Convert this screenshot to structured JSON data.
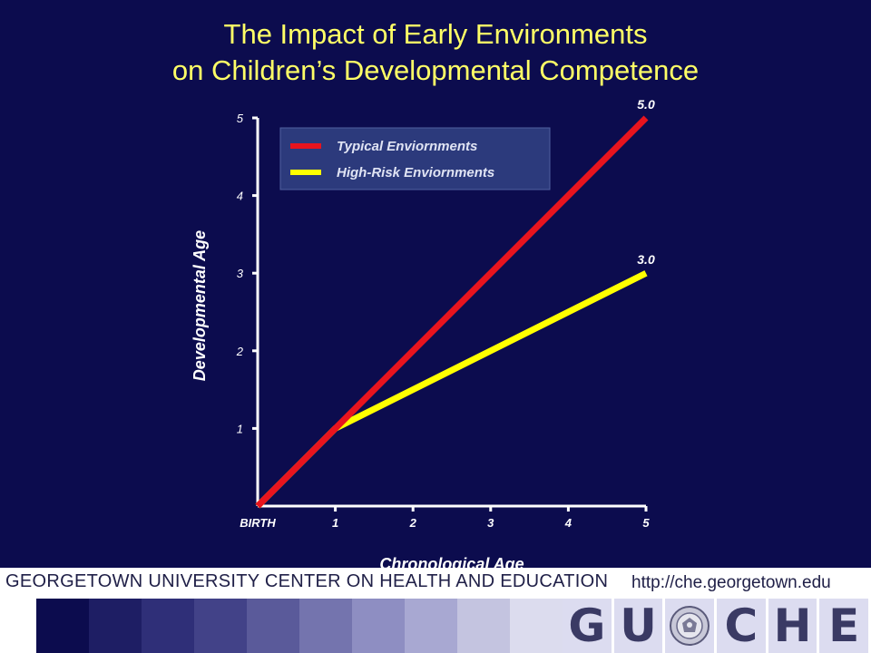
{
  "title": {
    "line1": "The Impact of Early Environments",
    "line2": "on Children’s Developmental Competence"
  },
  "chart_data": {
    "type": "line",
    "xlabel": "Chronological Age",
    "ylabel": "Developmental Age",
    "x_ticks": [
      "BIRTH",
      "1",
      "2",
      "3",
      "4",
      "5"
    ],
    "y_ticks": [
      "1",
      "2",
      "3",
      "4",
      "5"
    ],
    "xlim": [
      0,
      5
    ],
    "ylim": [
      0,
      5
    ],
    "legend_position": "top-left",
    "series": [
      {
        "name": "Typical Enviornments",
        "color": "#e8141e",
        "points": [
          [
            0,
            0
          ],
          [
            1,
            1
          ],
          [
            5,
            5
          ]
        ],
        "end_label": "5.0"
      },
      {
        "name": "High-Risk Enviornments",
        "color": "#ffff00",
        "points": [
          [
            0,
            0
          ],
          [
            1,
            1
          ],
          [
            5,
            3
          ]
        ],
        "end_label": "3.0"
      }
    ]
  },
  "footer": {
    "organization": "GEORGETOWN UNIVERSITY CENTER ON HEALTH AND EDUCATION",
    "url": "http://che.georgetown.edu",
    "logo_left": [
      "G",
      "U"
    ],
    "logo_right": [
      "C",
      "H",
      "E"
    ],
    "seal_icon": "georgetown-seal-icon"
  },
  "colors": {
    "background": "#0c0c4e",
    "title": "#ffff66",
    "axis": "#ffffff",
    "footer_text": "#202048"
  }
}
